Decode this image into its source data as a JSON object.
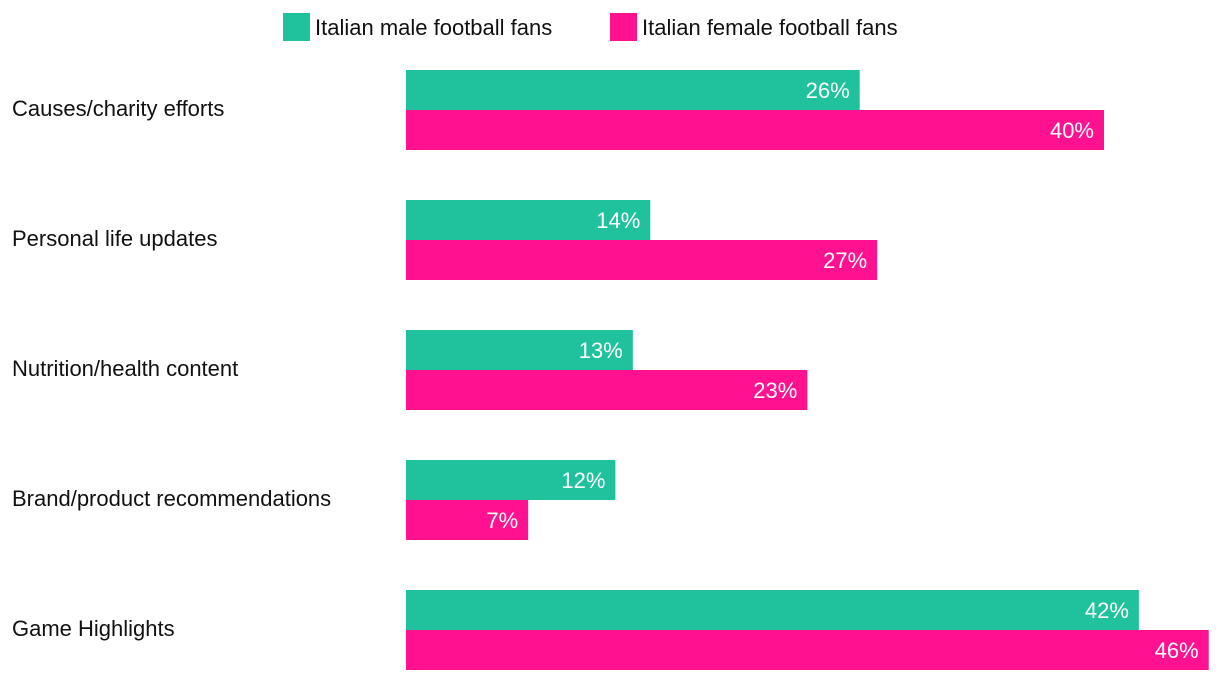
{
  "chart_data": {
    "type": "bar",
    "orientation": "horizontal",
    "categories": [
      "Causes/charity efforts",
      "Personal life updates",
      "Nutrition/health content",
      "Brand/product recommendations",
      "Game Highlights"
    ],
    "series": [
      {
        "name": "Italian male football fans",
        "color": "#20c29e",
        "values": [
          26,
          14,
          13,
          12,
          42
        ],
        "labels": [
          "26%",
          "14%",
          "13%",
          "12%",
          "42%"
        ]
      },
      {
        "name": "Italian female football fans",
        "color": "#ff1190",
        "values": [
          40,
          27,
          23,
          7,
          46
        ],
        "labels": [
          "40%",
          "27%",
          "23%",
          "7%",
          "46%"
        ]
      }
    ],
    "value_unit": "%",
    "xlim": [
      0,
      46
    ],
    "grid": false,
    "legend": "top-center"
  }
}
